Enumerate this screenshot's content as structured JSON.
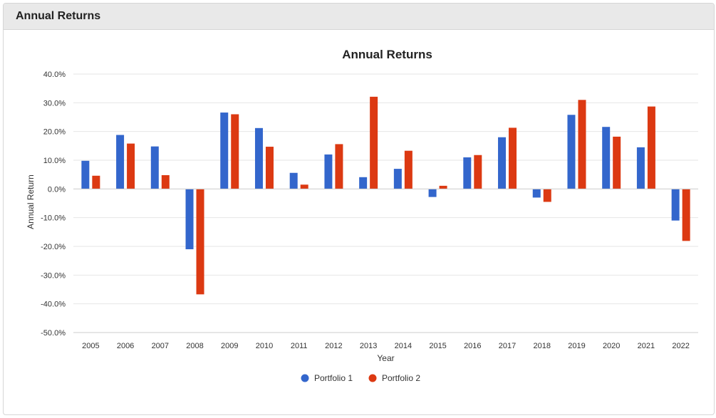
{
  "panel": {
    "title": "Annual Returns"
  },
  "colors": {
    "portfolio_1": "#3366cc",
    "portfolio_2": "#dc3912"
  },
  "chart_data": {
    "type": "bar",
    "title": "Annual Returns",
    "xlabel": "Year",
    "ylabel": "Annual Return",
    "ylim": [
      -50,
      40
    ],
    "yticks": [
      "40.0%",
      "30.0%",
      "20.0%",
      "10.0%",
      "0.0%",
      "-10.0%",
      "-20.0%",
      "-30.0%",
      "-40.0%",
      "-50.0%"
    ],
    "categories": [
      "2005",
      "2006",
      "2007",
      "2008",
      "2009",
      "2010",
      "2011",
      "2012",
      "2013",
      "2014",
      "2015",
      "2016",
      "2017",
      "2018",
      "2019",
      "2020",
      "2021",
      "2022"
    ],
    "series": [
      {
        "name": "Portfolio 1",
        "values": [
          9.8,
          18.8,
          14.8,
          -21.0,
          26.6,
          21.2,
          5.6,
          12.0,
          4.1,
          7.0,
          -2.8,
          11.0,
          18.0,
          -3.0,
          25.8,
          21.6,
          14.5,
          -11.0
        ]
      },
      {
        "name": "Portfolio 2",
        "values": [
          4.6,
          15.8,
          4.8,
          -36.7,
          26.0,
          14.7,
          1.5,
          15.6,
          32.1,
          13.3,
          1.1,
          11.8,
          21.3,
          -4.5,
          31.0,
          18.2,
          28.7,
          -18.1
        ]
      }
    ],
    "grid": true,
    "legend": "bottom"
  }
}
